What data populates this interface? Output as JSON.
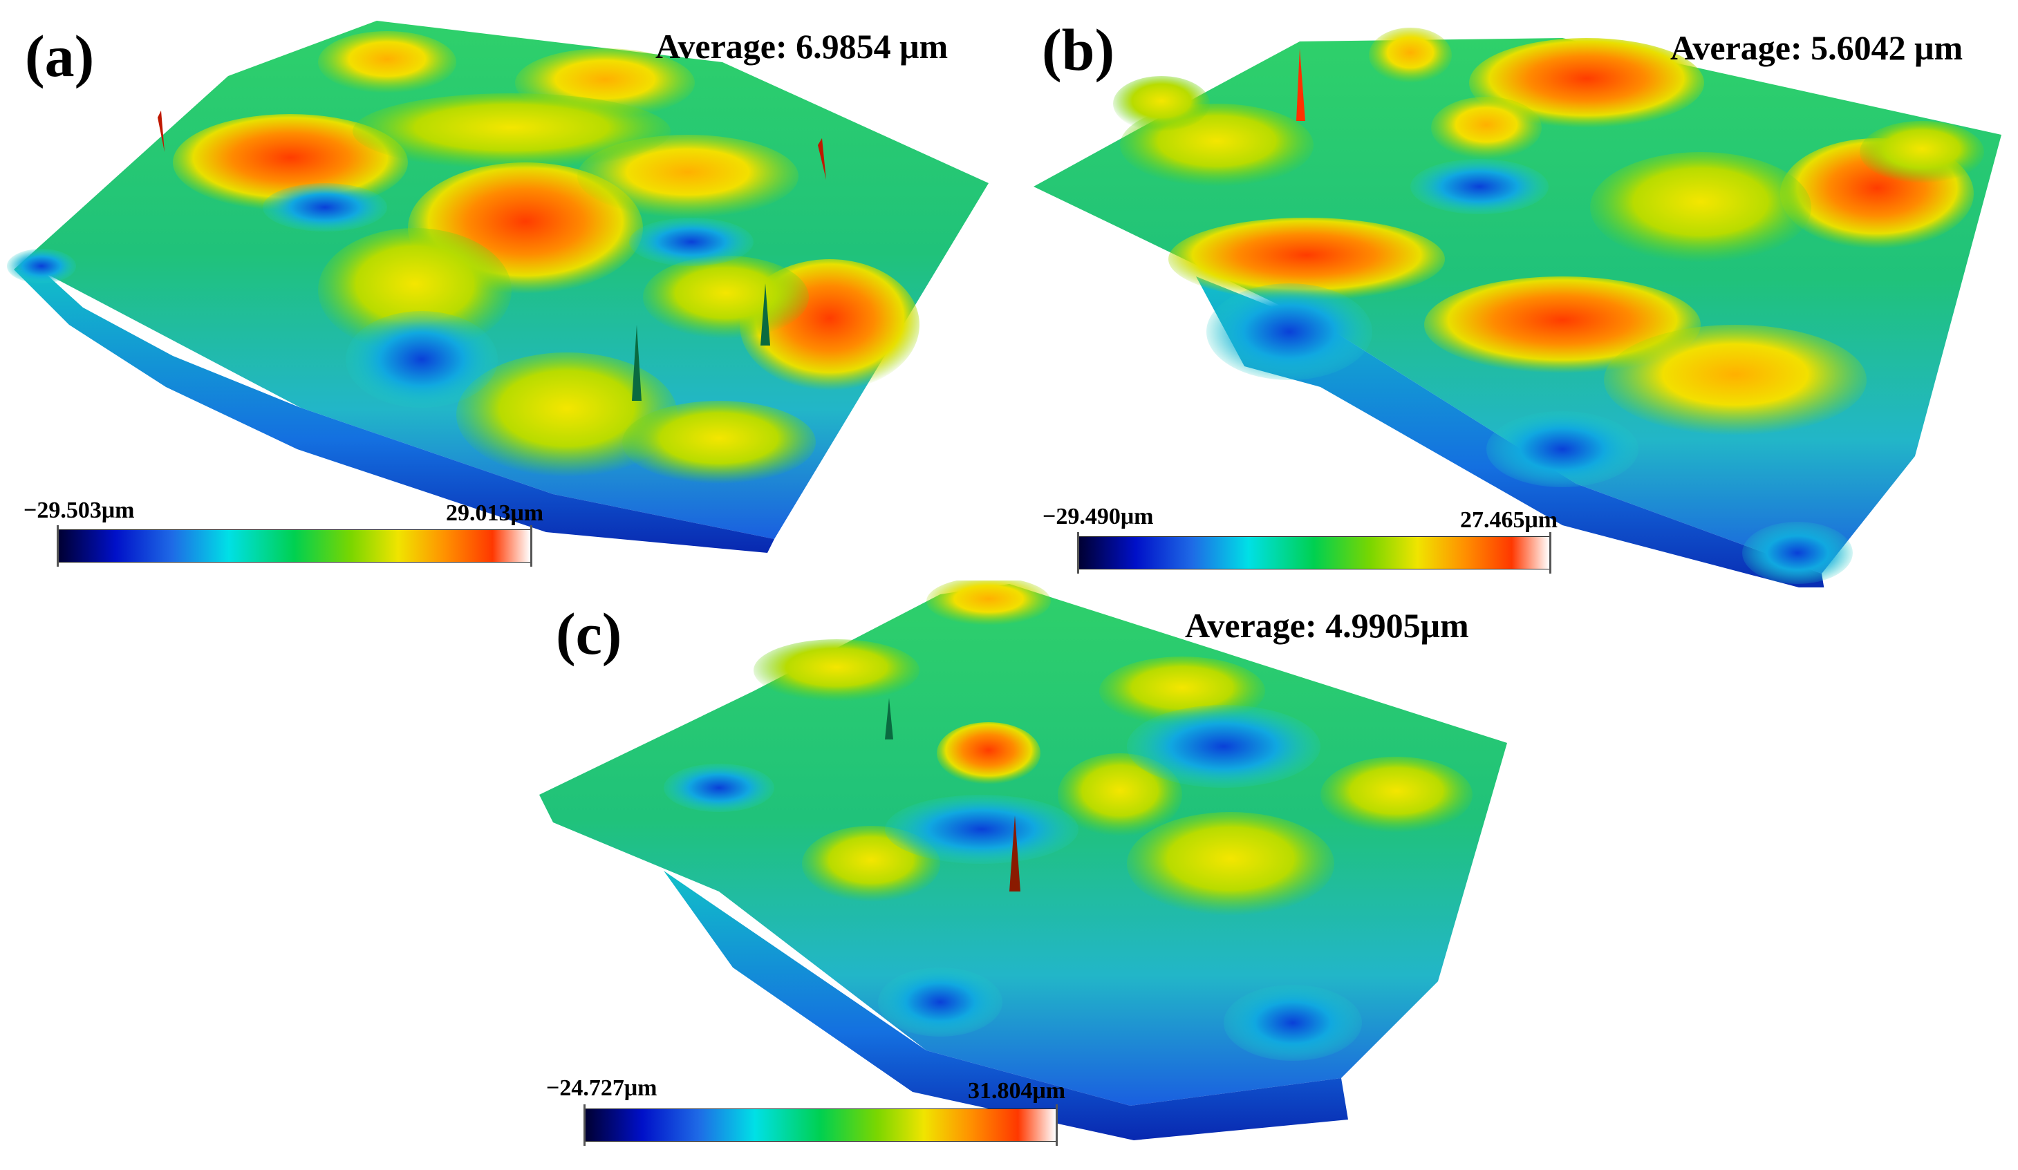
{
  "colormap": [
    "#000033",
    "#0010c8",
    "#1e6ae6",
    "#00e0e6",
    "#00d050",
    "#7ad600",
    "#f0e400",
    "#ff9000",
    "#ff3800",
    "#ffffff"
  ],
  "panels": [
    {
      "label": "(a)",
      "average": "Average: 6.9854 μm",
      "colorbar": {
        "min": "−29.503μm",
        "max": "29.013μm"
      }
    },
    {
      "label": "(b)",
      "average": "Average: 5.6042 μm",
      "colorbar": {
        "min": "−29.490μm",
        "max": "27.465μm"
      }
    },
    {
      "label": "(c)",
      "average": "Average: 4.9905μm",
      "colorbar": {
        "min": "−24.727μm",
        "max": "31.804μm"
      }
    }
  ]
}
